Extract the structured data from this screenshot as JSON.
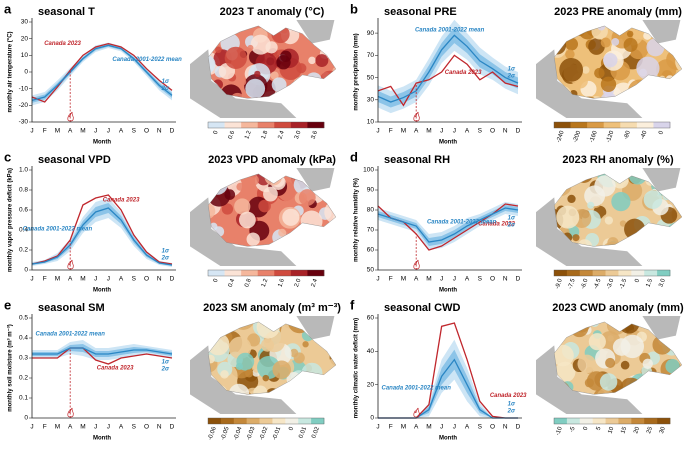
{
  "chart_data": [
    {
      "type": "line",
      "panel": "a",
      "title": "seasonal T",
      "ylabel": "monthly air temperature (°C)",
      "xlabel": "Month",
      "categories": [
        "J",
        "F",
        "M",
        "A",
        "M",
        "J",
        "J",
        "A",
        "S",
        "O",
        "N",
        "D"
      ],
      "ylim": [
        -30,
        30
      ],
      "yticks": [
        -30,
        -20,
        -10,
        0,
        10,
        20,
        30
      ],
      "band_labels": [
        "1σ",
        "2σ"
      ],
      "band_colors": [
        "#8cc4e8",
        "#cde5f5"
      ],
      "series": [
        {
          "name": "Canada 2023",
          "color": "#c0272d",
          "values": [
            -15,
            -18,
            -9,
            1,
            10,
            15,
            17,
            15,
            10,
            2,
            -5,
            -11
          ]
        },
        {
          "name": "Canada 2001-2022 mean",
          "color": "#2a86c4",
          "values": [
            -17,
            -15,
            -8,
            0,
            8,
            14,
            16,
            14,
            8,
            0,
            -8,
            -14
          ],
          "sd": [
            1.5,
            1.5,
            1.5,
            1.2,
            1,
            1,
            0.8,
            0.8,
            1,
            1.2,
            1.5,
            1.5
          ]
        }
      ]
    },
    {
      "type": "line",
      "panel": "b",
      "title": "seasonal PRE",
      "ylabel": "monthly precipitation (mm)",
      "xlabel": "Month",
      "categories": [
        "J",
        "F",
        "M",
        "A",
        "M",
        "J",
        "J",
        "A",
        "S",
        "O",
        "N",
        "D"
      ],
      "ylim": [
        10,
        100
      ],
      "yticks": [
        10,
        30,
        50,
        70,
        90
      ],
      "band_labels": [
        "1σ",
        "2σ"
      ],
      "band_colors": [
        "#8cc4e8",
        "#cde5f5"
      ],
      "series": [
        {
          "name": "Canada 2023",
          "color": "#c0272d",
          "values": [
            38,
            42,
            25,
            45,
            48,
            55,
            70,
            62,
            48,
            55,
            45,
            42
          ]
        },
        {
          "name": "Canada 2001-2022 mean",
          "color": "#2a86c4",
          "values": [
            33,
            28,
            32,
            38,
            55,
            75,
            88,
            78,
            65,
            58,
            50,
            45
          ],
          "sd": [
            5,
            5,
            5,
            5,
            6,
            6,
            7,
            6,
            6,
            5,
            5,
            5
          ]
        }
      ]
    },
    {
      "type": "line",
      "panel": "c",
      "title": "seasonal VPD",
      "ylabel": "monthly vapor pressure deficit (kPa)",
      "xlabel": "Month",
      "categories": [
        "J",
        "F",
        "M",
        "A",
        "M",
        "J",
        "J",
        "A",
        "S",
        "O",
        "N",
        "D"
      ],
      "ylim": [
        0,
        1.0
      ],
      "yticks": [
        0,
        0.2,
        0.4,
        0.6,
        0.8,
        {
          "value": 1.0,
          "label": "1.0"
        }
      ],
      "band_labels": [
        "1σ",
        "2σ"
      ],
      "band_colors": [
        "#8cc4e8",
        "#cde5f5"
      ],
      "series": [
        {
          "name": "Canada 2023",
          "color": "#c0272d",
          "values": [
            0.06,
            0.09,
            0.14,
            0.3,
            0.65,
            0.72,
            0.75,
            0.6,
            0.35,
            0.18,
            0.08,
            0.06
          ]
        },
        {
          "name": "Canada 2001-2022 mean",
          "color": "#2a86c4",
          "values": [
            0.06,
            0.08,
            0.13,
            0.25,
            0.45,
            0.58,
            0.62,
            0.5,
            0.3,
            0.15,
            0.07,
            0.05
          ],
          "sd": [
            0.01,
            0.01,
            0.02,
            0.03,
            0.04,
            0.05,
            0.05,
            0.04,
            0.03,
            0.02,
            0.01,
            0.01
          ]
        }
      ]
    },
    {
      "type": "line",
      "panel": "d",
      "title": "seasonal RH",
      "ylabel": "monthly relative humidity (%)",
      "xlabel": "Month",
      "categories": [
        "J",
        "F",
        "M",
        "A",
        "M",
        "J",
        "J",
        "A",
        "S",
        "O",
        "N",
        "D"
      ],
      "ylim": [
        50,
        100
      ],
      "yticks": [
        50,
        60,
        70,
        80,
        90,
        100
      ],
      "band_labels": [
        "1σ",
        "2σ"
      ],
      "band_colors": [
        "#8cc4e8",
        "#cde5f5"
      ],
      "series": [
        {
          "name": "Canada 2023",
          "color": "#c0272d",
          "values": [
            82,
            76,
            74,
            68,
            60,
            62,
            66,
            70,
            74,
            78,
            83,
            82
          ]
        },
        {
          "name": "Canada 2001-2022 mean",
          "color": "#2a86c4",
          "values": [
            78,
            76,
            74,
            72,
            64,
            65,
            68,
            72,
            75,
            78,
            81,
            80
          ],
          "sd": [
            1.5,
            1.5,
            1.5,
            1.5,
            2,
            2,
            2,
            2,
            1.5,
            1.5,
            1.5,
            1.5
          ]
        }
      ]
    },
    {
      "type": "line",
      "panel": "e",
      "title": "seasonal SM",
      "ylabel": "monthly soil moisture (m³ m⁻³)",
      "xlabel": "Month",
      "categories": [
        "J",
        "F",
        "M",
        "A",
        "M",
        "J",
        "J",
        "A",
        "S",
        "O",
        "N",
        "D"
      ],
      "ylim": [
        0,
        0.5
      ],
      "yticks": [
        0,
        0.1,
        0.2,
        0.3,
        0.4,
        0.5
      ],
      "band_labels": [
        "1σ",
        "2σ"
      ],
      "band_colors": [
        "#8cc4e8",
        "#cde5f5"
      ],
      "series": [
        {
          "name": "Canada 2023",
          "color": "#c0272d",
          "values": [
            0.3,
            0.3,
            0.3,
            0.35,
            0.35,
            0.29,
            0.27,
            0.3,
            0.31,
            0.32,
            0.31,
            0.3
          ]
        },
        {
          "name": "Canada 2001-2022 mean",
          "color": "#2a86c4",
          "values": [
            0.32,
            0.32,
            0.32,
            0.35,
            0.35,
            0.32,
            0.32,
            0.33,
            0.34,
            0.34,
            0.33,
            0.32
          ],
          "sd": [
            0.01,
            0.01,
            0.01,
            0.015,
            0.02,
            0.015,
            0.015,
            0.015,
            0.015,
            0.01,
            0.01,
            0.01
          ]
        }
      ]
    },
    {
      "type": "line",
      "panel": "f",
      "title": "seasonal CWD",
      "ylabel": "monthly climatic water deficit (mm)",
      "xlabel": "Month",
      "categories": [
        "J",
        "F",
        "M",
        "A",
        "M",
        "J",
        "J",
        "A",
        "S",
        "O",
        "N",
        "D"
      ],
      "ylim": [
        0,
        60
      ],
      "yticks": [
        0,
        20,
        40,
        60
      ],
      "band_labels": [
        "1σ",
        "2σ"
      ],
      "band_colors": [
        "#8cc4e8",
        "#cde5f5"
      ],
      "series": [
        {
          "name": "Canada 2023",
          "color": "#c0272d",
          "values": [
            0,
            0,
            0,
            0,
            8,
            55,
            57,
            35,
            10,
            1,
            0,
            0
          ]
        },
        {
          "name": "Canada 2001-2022 mean",
          "color": "#2a86c4",
          "values": [
            0,
            0,
            0,
            0,
            5,
            25,
            35,
            20,
            5,
            0,
            0,
            0
          ],
          "sd": [
            0,
            0,
            0,
            0,
            2,
            5,
            6,
            5,
            2,
            0,
            0,
            0
          ]
        }
      ]
    }
  ],
  "maps": [
    {
      "title": "2023 T anomaly (°C)",
      "colorbar_labels": [
        "0",
        "0.6",
        "1.2",
        "1.8",
        "2.4",
        "3.0",
        "3.6"
      ],
      "colorbar_colors": [
        "#d6e6f4",
        "#fbe3d6",
        "#f5b79c",
        "#e8816a",
        "#cf4b3e",
        "#a82227",
        "#67000d"
      ]
    },
    {
      "title": "2023 PRE anomaly (mm)",
      "colorbar_labels": [
        "-240",
        "-200",
        "-160",
        "-120",
        "-80",
        "-40",
        "0"
      ],
      "colorbar_colors": [
        "#8c510a",
        "#b8761c",
        "#d99a45",
        "#eec07a",
        "#f6dcb0",
        "#fbefdc",
        "#d8d4ea"
      ]
    },
    {
      "title": "2023 VPD anomaly (kPa)",
      "colorbar_labels": [
        "0",
        "0.4",
        "0.8",
        "1.2",
        "1.6",
        "2.0",
        "2.4"
      ],
      "colorbar_colors": [
        "#d6e6f4",
        "#fbe3d6",
        "#f5b79c",
        "#e8816a",
        "#cf4b3e",
        "#a82227",
        "#67000d"
      ]
    },
    {
      "title": "2023 RH anomaly (%)",
      "colorbar_labels": [
        "-9.0",
        "-7.5",
        "-6.0",
        "-4.5",
        "-3.0",
        "-1.5",
        "0",
        "1.5",
        "3.0"
      ],
      "colorbar_colors": [
        "#8c510a",
        "#a86a1c",
        "#c4883a",
        "#dcac68",
        "#ecca96",
        "#f6e6c6",
        "#f2f0e6",
        "#c8e8e0",
        "#80cdc1"
      ]
    },
    {
      "title": "2023 SM anomaly (m³ m⁻³)",
      "colorbar_labels": [
        "-0.06",
        "-0.05",
        "-0.04",
        "-0.03",
        "-0.02",
        "-0.01",
        "0",
        "0.01",
        "0.02"
      ],
      "colorbar_colors": [
        "#8c510a",
        "#a86a1c",
        "#c4883a",
        "#dcac68",
        "#ecca96",
        "#f6e6c6",
        "#f2f0e6",
        "#c8e8e0",
        "#80cdc1"
      ]
    },
    {
      "title": "2023 CWD anomaly (mm)",
      "colorbar_labels": [
        "-10",
        "-5",
        "0",
        "5",
        "10",
        "15",
        "20",
        "25",
        "30"
      ],
      "colorbar_colors": [
        "#80cdc1",
        "#c8e8e0",
        "#f2f0e6",
        "#f6e6c6",
        "#ecca96",
        "#dcac68",
        "#c4883a",
        "#a86a1c",
        "#8c510a"
      ]
    }
  ]
}
